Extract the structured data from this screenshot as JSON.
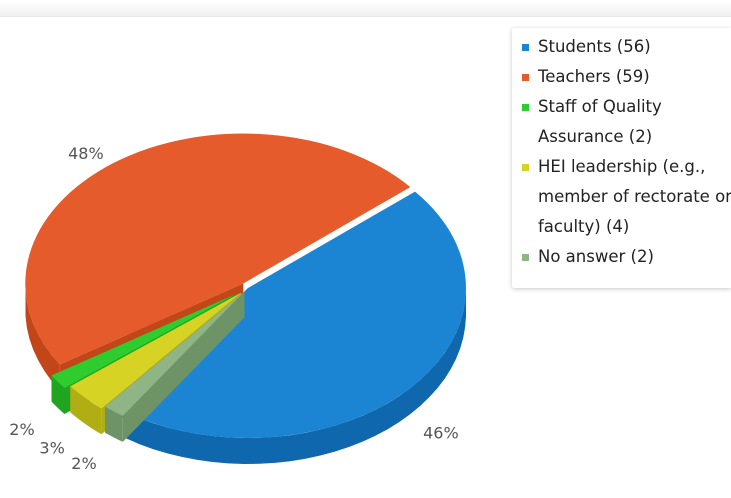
{
  "chart_data": {
    "type": "pie",
    "style": "3d",
    "legend_position": "right",
    "slices": [
      {
        "label": "48%",
        "value": 59,
        "color": "#e55b2b",
        "side": "#c24618"
      },
      {
        "label": "2%",
        "value": 2,
        "color": "#2fcc2f",
        "side": "#1fa51f"
      },
      {
        "label": "3%",
        "value": 4,
        "color": "#d6d325",
        "side": "#b1ae14"
      },
      {
        "label": "2%",
        "value": 2,
        "color": "#8fb585",
        "side": "#6d9366"
      },
      {
        "label": "46%",
        "value": 56,
        "color": "#1b85d4",
        "side": "#0f67ad"
      }
    ],
    "legend": [
      {
        "lines": [
          "Students (56)"
        ],
        "color": "#1b85d4"
      },
      {
        "lines": [
          "Teachers (59)"
        ],
        "color": "#e55b2b"
      },
      {
        "lines": [
          "Staff of Quality",
          "Assurance (2)"
        ],
        "color": "#2fcc2f"
      },
      {
        "lines": [
          "HEI leadership (e.g.,",
          "member of rectorate or",
          "faculty) (4)"
        ],
        "color": "#d6d325"
      },
      {
        "lines": [
          "No answer (2)"
        ],
        "color": "#8fb585"
      }
    ]
  }
}
